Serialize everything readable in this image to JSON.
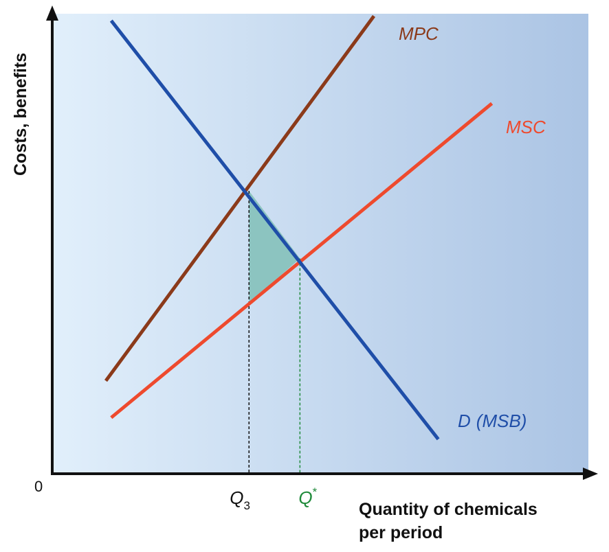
{
  "chart_data": {
    "type": "line",
    "title": "",
    "xlabel_line1": "Quantity of chemicals",
    "xlabel_line2": "per period",
    "ylabel": "Costs, benefits",
    "origin_label": "0",
    "xlim": [
      0,
      100
    ],
    "ylim": [
      0,
      100
    ],
    "grid": false,
    "series": [
      {
        "name": "MPC",
        "label": "MPC",
        "color": "#8B3A1A",
        "points": [
          [
            10,
            20.2
          ],
          [
            60,
            99.5
          ]
        ]
      },
      {
        "name": "MSC",
        "label": "MSC",
        "color": "#EE4A2E",
        "points": [
          [
            11,
            12.2
          ],
          [
            82,
            80.5
          ]
        ]
      },
      {
        "name": "D (MSB)",
        "label_main": "D",
        "label_paren": "(MSB)",
        "color": "#1F4EA8",
        "points": [
          [
            11,
            98.5
          ],
          [
            72,
            7.5
          ]
        ]
      }
    ],
    "markers": [
      {
        "name": "Q3",
        "symbol": "Q",
        "subscript": "3",
        "superscript": "",
        "x": 36.7,
        "color": "#111111"
      },
      {
        "name": "Q*",
        "symbol": "Q",
        "subscript": "",
        "superscript": "*",
        "x": 46.2,
        "color": "#1F8A3A"
      }
    ],
    "shaded_region": {
      "description": "deadweight loss triangle",
      "color": "#8CC4C0",
      "vertices": [
        [
          36.7,
          61.5
        ],
        [
          46.2,
          46.8
        ],
        [
          36.7,
          37.0
        ]
      ]
    },
    "background_gradient": [
      "#E1EFFB",
      "#ABC4E4"
    ]
  }
}
